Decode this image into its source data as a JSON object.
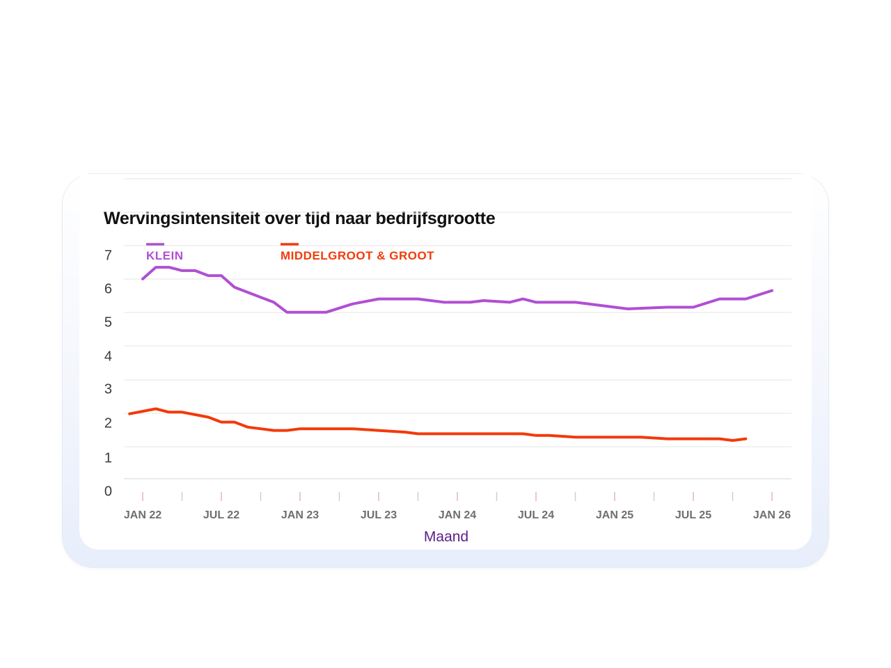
{
  "chart_data": {
    "type": "line",
    "title": "Wervingsintensiteit over tijd naar bedrijfsgrootte",
    "xlabel": "Maand",
    "ylabel": "",
    "x_tick_labels": [
      "JAN 22",
      "JUL 22",
      "JAN 23",
      "JUL 23",
      "JAN 24",
      "JUL 24",
      "JAN 25",
      "JUL 25",
      "JAN 26"
    ],
    "y_tick_labels": [
      "0",
      "1",
      "2",
      "3",
      "4",
      "5",
      "6",
      "7"
    ],
    "ylim": [
      0,
      7
    ],
    "grid": true,
    "legend_position": "top-left",
    "series": [
      {
        "name": "KLEIN",
        "color": "#b04fd4",
        "x": [
          "2022-01",
          "2022-02",
          "2022-03",
          "2022-04",
          "2022-05",
          "2022-06",
          "2022-07",
          "2022-08",
          "2022-11",
          "2022-12",
          "2023-03",
          "2023-05",
          "2023-07",
          "2023-09",
          "2023-10",
          "2023-12",
          "2024-01",
          "2024-02",
          "2024-03",
          "2024-05",
          "2024-06",
          "2024-07",
          "2024-10",
          "2024-12",
          "2025-01",
          "2025-02",
          "2025-05",
          "2025-07",
          "2025-09",
          "2025-11",
          "2026-01"
        ],
        "values": [
          6.0,
          6.35,
          6.35,
          6.25,
          6.25,
          6.1,
          6.1,
          5.75,
          5.3,
          5.0,
          5.0,
          5.25,
          5.4,
          5.4,
          5.4,
          5.3,
          5.3,
          5.3,
          5.35,
          5.3,
          5.4,
          5.3,
          5.3,
          5.2,
          5.15,
          5.1,
          5.15,
          5.15,
          5.4,
          5.4,
          5.65
        ]
      },
      {
        "name": "MIDDELGROOT & GROOT",
        "color": "#f23a0a",
        "x": [
          "2021-12",
          "2022-02",
          "2022-03",
          "2022-04",
          "2022-06",
          "2022-07",
          "2022-08",
          "2022-09",
          "2022-10",
          "2022-11",
          "2022-12",
          "2023-01",
          "2023-03",
          "2023-05",
          "2023-07",
          "2023-09",
          "2023-10",
          "2023-12",
          "2024-02",
          "2024-04",
          "2024-06",
          "2024-07",
          "2024-08",
          "2024-10",
          "2024-12",
          "2025-02",
          "2025-03",
          "2025-05",
          "2025-07",
          "2025-09",
          "2025-10",
          "2025-11"
        ],
        "values": [
          1.95,
          2.1,
          2.0,
          2.0,
          1.85,
          1.7,
          1.7,
          1.55,
          1.5,
          1.45,
          1.45,
          1.5,
          1.5,
          1.5,
          1.45,
          1.4,
          1.35,
          1.35,
          1.35,
          1.35,
          1.35,
          1.3,
          1.3,
          1.25,
          1.25,
          1.25,
          1.25,
          1.2,
          1.2,
          1.2,
          1.15,
          1.2
        ]
      }
    ]
  }
}
